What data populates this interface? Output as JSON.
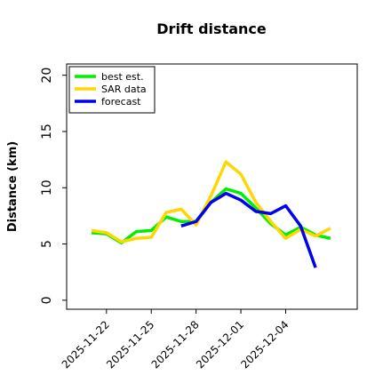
{
  "chart_data": {
    "type": "line",
    "title": "Drift distance",
    "ylabel": "Distance (km)",
    "x": [
      "2025-11-21",
      "2025-11-22",
      "2025-11-23",
      "2025-11-24",
      "2025-11-25",
      "2025-11-26",
      "2025-11-27",
      "2025-11-28",
      "2025-11-29",
      "2025-11-30",
      "2025-12-01",
      "2025-12-02",
      "2025-12-03",
      "2025-12-04",
      "2025-12-05",
      "2025-12-06",
      "2025-12-07"
    ],
    "series": [
      {
        "name": "best est.",
        "color": "#00ee00",
        "values": [
          6.0,
          5.9,
          5.1,
          6.1,
          6.2,
          7.4,
          7.0,
          7.0,
          8.7,
          9.9,
          9.5,
          8.2,
          6.8,
          5.8,
          6.5,
          5.8,
          5.5
        ]
      },
      {
        "name": "SAR data",
        "color": "#ffd700",
        "values": [
          6.2,
          6.0,
          5.2,
          5.5,
          5.6,
          7.8,
          8.1,
          6.7,
          9.3,
          12.3,
          11.2,
          8.7,
          7.0,
          5.5,
          6.3,
          5.7,
          6.4
        ]
      },
      {
        "name": "forecast",
        "color": "#0000ee",
        "values": [
          null,
          null,
          null,
          null,
          null,
          null,
          6.6,
          7.0,
          8.7,
          9.5,
          8.9,
          7.9,
          7.7,
          8.4,
          6.6,
          2.9,
          null
        ]
      }
    ],
    "xlim": [
      "2025-11-19T08:00",
      "2025-12-08T19:00"
    ],
    "xticks": [
      "2025-11-22",
      "2025-11-25",
      "2025-11-28",
      "2025-12-01",
      "2025-12-04"
    ],
    "ylim": [
      -0.8,
      21
    ],
    "yticks": [
      0,
      5,
      10,
      15,
      20
    ],
    "legend": "upper left"
  }
}
